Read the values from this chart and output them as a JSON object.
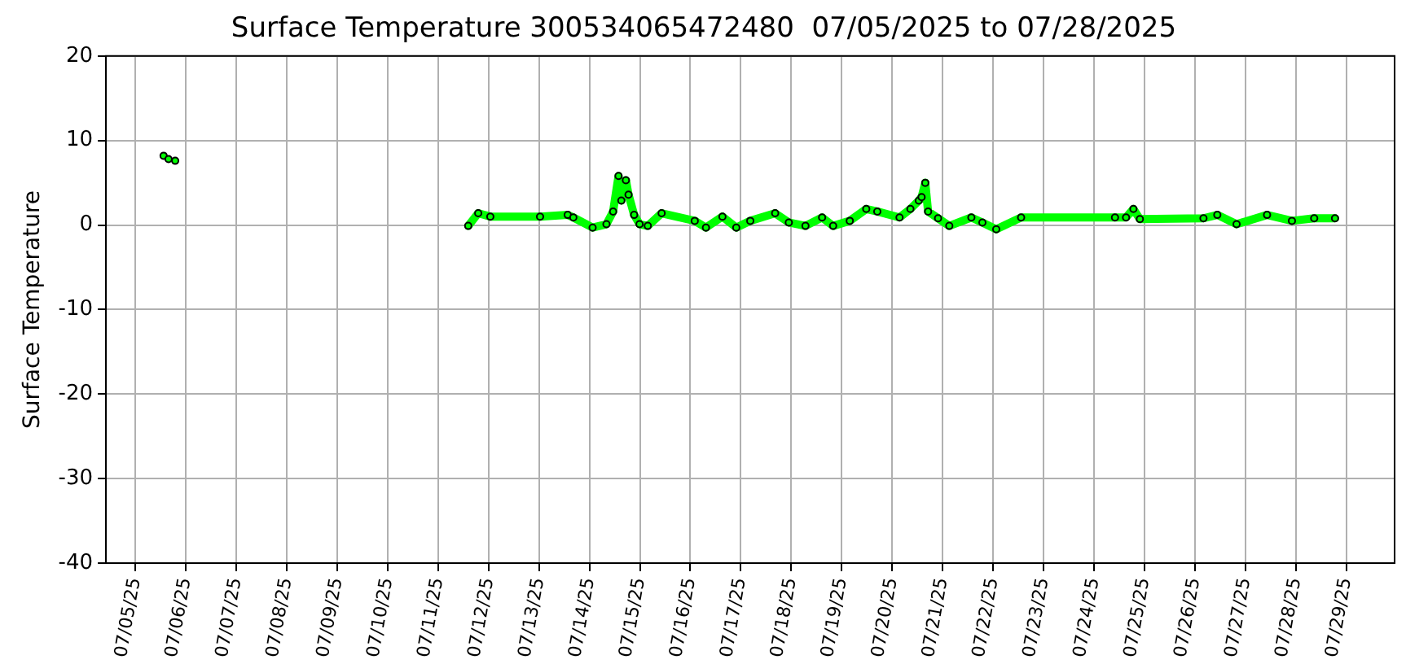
{
  "chart_data": {
    "type": "line",
    "title": "Surface Temperature 300534065472480  07/05/2025 to 07/28/2025",
    "ylabel": "Surface Temperature",
    "series": [
      {
        "type": "scatter",
        "color": "#00ff00",
        "x": [
          "2025-07-05T13:25",
          "2025-07-05T15:46",
          "2025-07-05T18:56"
        ],
        "values": [
          8.2,
          7.8,
          7.6
        ]
      },
      {
        "color": "#00ff00",
        "x": [
          "2025-07-11T14:20",
          "2025-07-11T19:05",
          "2025-07-12T00:50",
          "2025-07-13T00:30",
          "2025-07-13T13:40",
          "2025-07-13T16:20",
          "2025-07-14T01:30",
          "2025-07-14T08:05",
          "2025-07-14T11:15",
          "2025-07-14T13:50",
          "2025-07-14T15:10",
          "2025-07-14T17:20",
          "2025-07-14T18:35",
          "2025-07-14T21:15",
          "2025-07-14T23:50",
          "2025-07-15T03:45",
          "2025-07-15T10:20",
          "2025-07-16T02:05",
          "2025-07-16T07:25",
          "2025-07-16T15:15",
          "2025-07-16T21:50",
          "2025-07-17T04:30",
          "2025-07-17T16:20",
          "2025-07-17T22:50",
          "2025-07-18T06:45",
          "2025-07-18T14:40",
          "2025-07-18T19:55",
          "2025-07-19T03:50",
          "2025-07-19T11:40",
          "2025-07-19T16:55",
          "2025-07-20T03:30",
          "2025-07-20T08:40",
          "2025-07-20T12:40",
          "2025-07-20T14:00",
          "2025-07-20T15:45",
          "2025-07-20T17:05",
          "2025-07-20T21:50",
          "2025-07-21T03:10",
          "2025-07-21T13:40",
          "2025-07-21T18:55",
          "2025-07-22T01:30",
          "2025-07-22T13:20",
          "2025-07-24T10:00",
          "2025-07-24T15:15",
          "2025-07-24T18:45",
          "2025-07-24T21:50",
          "2025-07-26T04:05",
          "2025-07-26T10:40",
          "2025-07-26T19:50",
          "2025-07-27T10:20",
          "2025-07-27T22:10",
          "2025-07-28T08:45",
          "2025-07-28T18:40"
        ],
        "values": [
          -0.1,
          1.4,
          1.0,
          1.0,
          1.2,
          0.9,
          -0.3,
          0.1,
          1.6,
          5.8,
          2.9,
          5.3,
          3.6,
          1.2,
          0.1,
          -0.1,
          1.4,
          0.5,
          -0.3,
          1.0,
          -0.3,
          0.5,
          1.4,
          0.3,
          -0.1,
          0.9,
          -0.1,
          0.5,
          1.9,
          1.6,
          0.9,
          1.9,
          2.9,
          3.3,
          5.0,
          1.6,
          0.8,
          -0.1,
          0.9,
          0.3,
          -0.5,
          0.9,
          0.9,
          0.9,
          1.9,
          0.7,
          0.8,
          1.2,
          0.1,
          1.2,
          0.5,
          0.8,
          0.8
        ]
      }
    ],
    "xlim": [
      "2025-07-04T10:00",
      "2025-07-29T23:00"
    ],
    "xticks": [
      {
        "value": "2025-07-05",
        "label": "07/05/25"
      },
      {
        "value": "2025-07-06",
        "label": "07/06/25"
      },
      {
        "value": "2025-07-07",
        "label": "07/07/25"
      },
      {
        "value": "2025-07-08",
        "label": "07/08/25"
      },
      {
        "value": "2025-07-09",
        "label": "07/09/25"
      },
      {
        "value": "2025-07-10",
        "label": "07/10/25"
      },
      {
        "value": "2025-07-11",
        "label": "07/11/25"
      },
      {
        "value": "2025-07-12",
        "label": "07/12/25"
      },
      {
        "value": "2025-07-13",
        "label": "07/13/25"
      },
      {
        "value": "2025-07-14",
        "label": "07/14/25"
      },
      {
        "value": "2025-07-15",
        "label": "07/15/25"
      },
      {
        "value": "2025-07-16",
        "label": "07/16/25"
      },
      {
        "value": "2025-07-17",
        "label": "07/17/25"
      },
      {
        "value": "2025-07-18",
        "label": "07/18/25"
      },
      {
        "value": "2025-07-19",
        "label": "07/19/25"
      },
      {
        "value": "2025-07-20",
        "label": "07/20/25"
      },
      {
        "value": "2025-07-21",
        "label": "07/21/25"
      },
      {
        "value": "2025-07-22",
        "label": "07/22/25"
      },
      {
        "value": "2025-07-23",
        "label": "07/23/25"
      },
      {
        "value": "2025-07-24",
        "label": "07/24/25"
      },
      {
        "value": "2025-07-25",
        "label": "07/25/25"
      },
      {
        "value": "2025-07-26",
        "label": "07/26/25"
      },
      {
        "value": "2025-07-27",
        "label": "07/27/25"
      },
      {
        "value": "2025-07-28",
        "label": "07/28/25"
      },
      {
        "value": "2025-07-29",
        "label": "07/29/25"
      }
    ],
    "ylim": [
      -40,
      20
    ],
    "yticks": [
      -40,
      -30,
      -20,
      -10,
      0,
      10,
      20
    ],
    "grid": true,
    "marker": "circle",
    "line_style": "solid"
  }
}
